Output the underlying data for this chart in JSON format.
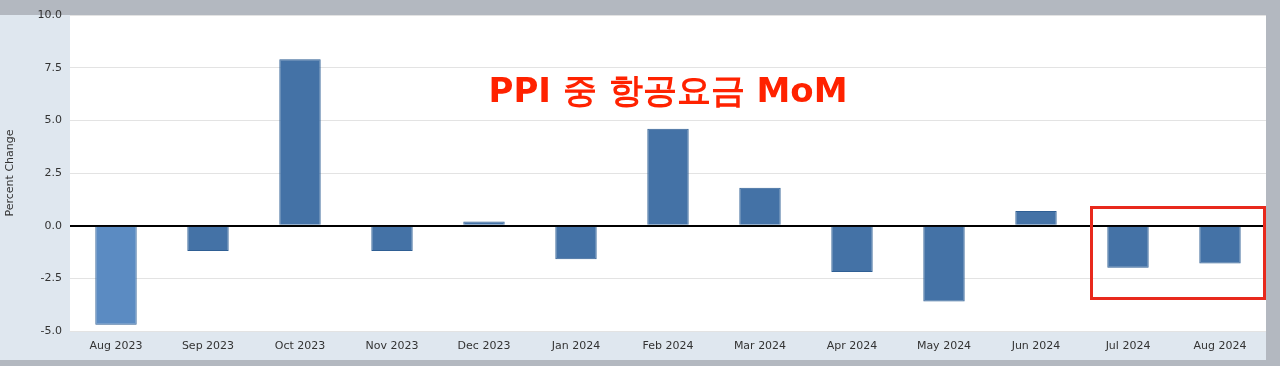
{
  "chart_data": {
    "type": "bar",
    "title": "PPI 중 항공요금 MoM",
    "ylabel": "Percent Change",
    "categories": [
      "Aug 2023",
      "Sep 2023",
      "Oct 2023",
      "Nov 2023",
      "Dec 2023",
      "Jan 2024",
      "Feb 2024",
      "Mar 2024",
      "Apr 2024",
      "May 2024",
      "Jun 2024",
      "Jul 2024",
      "Aug 2024"
    ],
    "values": [
      -4.7,
      -1.2,
      7.9,
      -1.2,
      0.2,
      -1.6,
      4.6,
      1.8,
      -2.2,
      -3.6,
      0.7,
      -2.0,
      -1.8
    ],
    "colors": [
      "#5b8bc2",
      "#4472a6",
      "#4472a6",
      "#4472a6",
      "#4472a6",
      "#4472a6",
      "#4472a6",
      "#4472a6",
      "#4472a6",
      "#4472a6",
      "#4472a6",
      "#4472a6",
      "#4472a6"
    ],
    "ylim": [
      -5,
      10
    ],
    "yticks": [
      {
        "value": -5,
        "label": "-5.0"
      },
      -2.5,
      {
        "value": 0,
        "label": "0.0"
      },
      2.5,
      {
        "value": 5,
        "label": "5.0"
      },
      7.5,
      {
        "value": 10,
        "label": "10.0"
      }
    ],
    "grid": "y",
    "legend": false
  }
}
